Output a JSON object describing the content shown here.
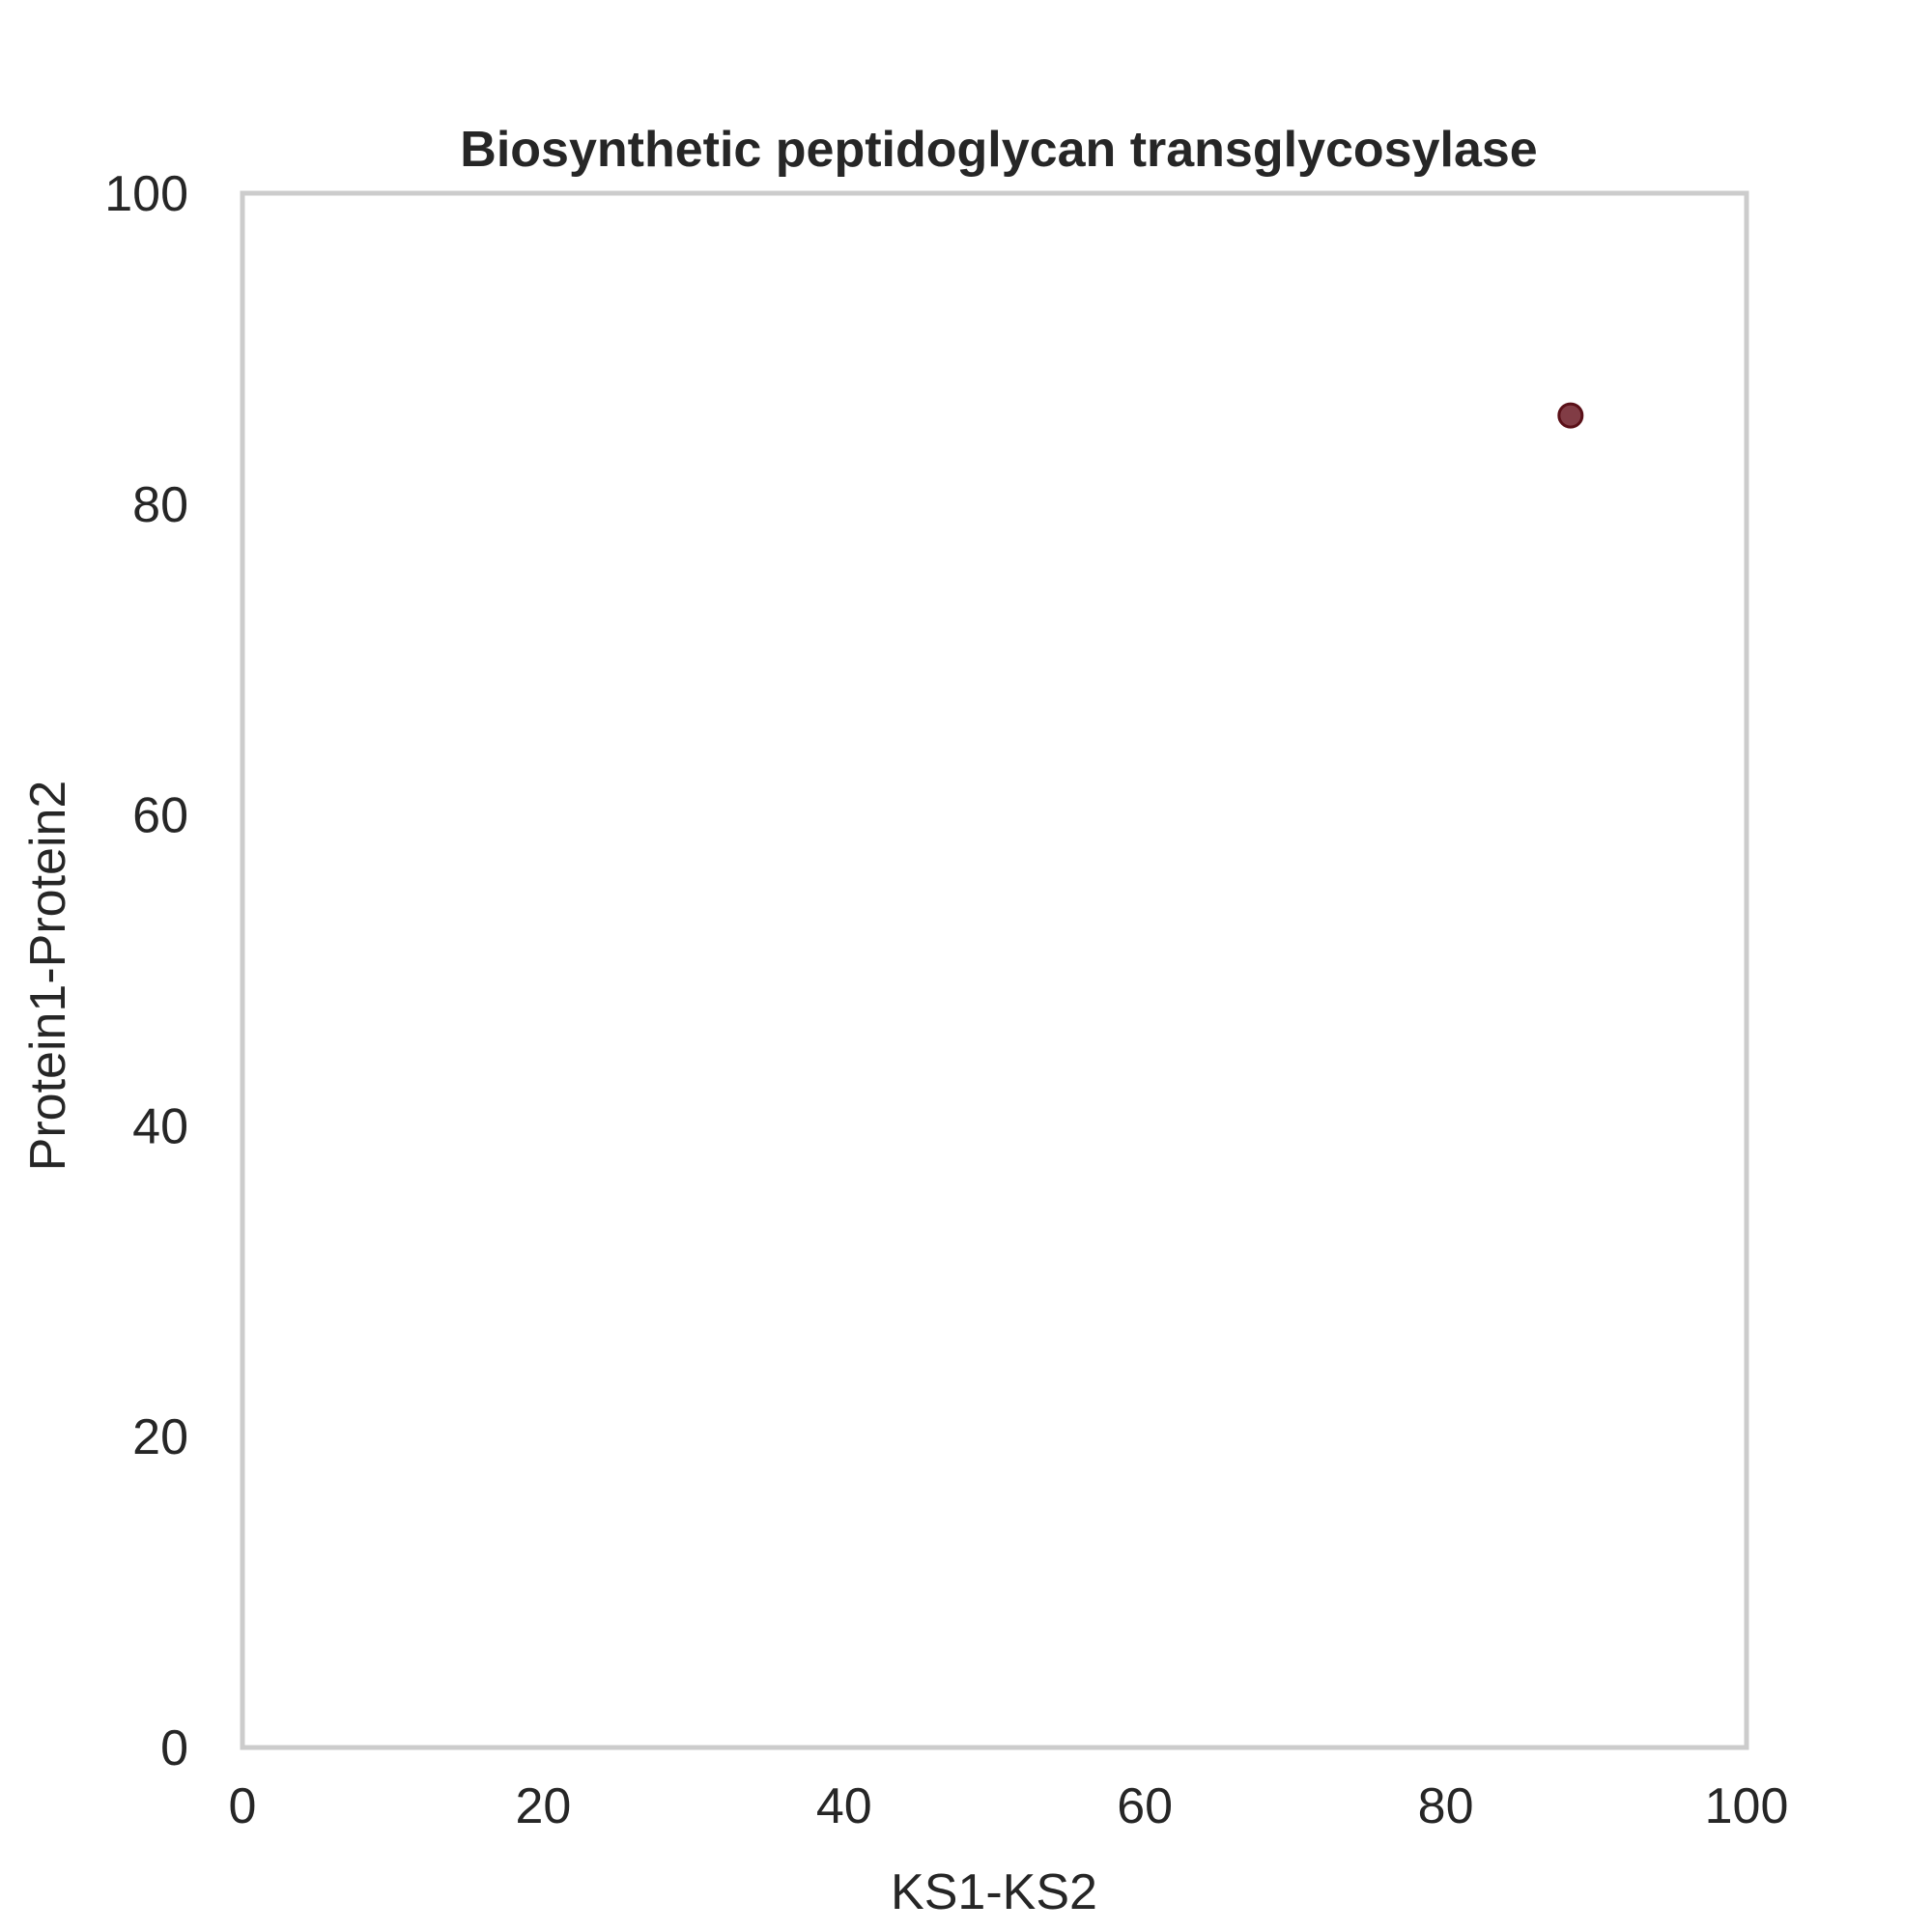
{
  "chart_data": {
    "type": "scatter",
    "title": "Biosynthetic peptidoglycan transglycosylase",
    "xlabel": "KS1-KS2",
    "ylabel": "Protein1-Protein2",
    "xlim": [
      0,
      100
    ],
    "ylim": [
      0,
      100
    ],
    "xticks": [
      "0",
      "20",
      "40",
      "60",
      "80",
      "100"
    ],
    "yticks": [
      "0",
      "20",
      "40",
      "60",
      "80",
      "100"
    ],
    "grid": false,
    "points": [
      {
        "x": 88.3,
        "y": 85.7
      }
    ],
    "colors": {
      "point_fill": "#6b1a24",
      "point_stroke": "#5a1018",
      "frame": "#cccccc",
      "text": "#262626"
    }
  }
}
